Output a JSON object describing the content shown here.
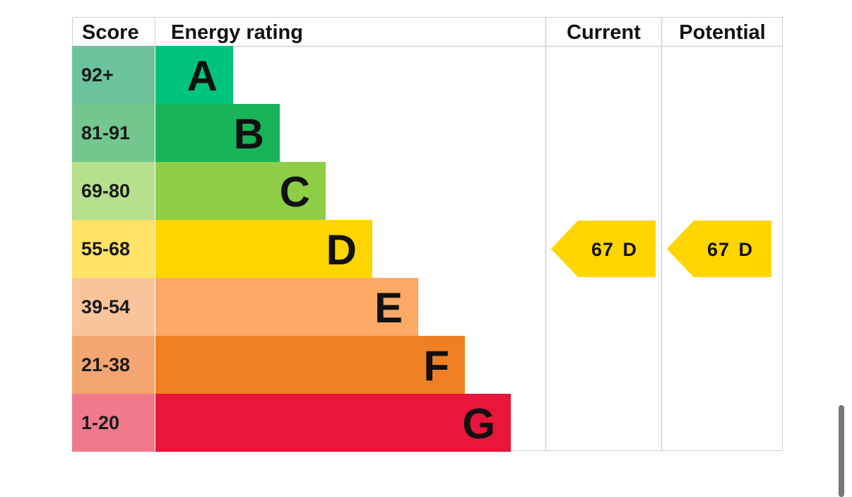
{
  "chart_data": {
    "type": "table",
    "headers": {
      "score": "Score",
      "rating": "Energy rating",
      "current": "Current",
      "potential": "Potential"
    },
    "bands": [
      {
        "letter": "A",
        "range": "92+",
        "color": "#00c47c",
        "score_color": "#6cc29d"
      },
      {
        "letter": "B",
        "range": "81-91",
        "color": "#19b459",
        "score_color": "#74c68f"
      },
      {
        "letter": "C",
        "range": "69-80",
        "color": "#8dce46",
        "score_color": "#b6e08e"
      },
      {
        "letter": "D",
        "range": "55-68",
        "color": "#ffd500",
        "score_color": "#ffe266"
      },
      {
        "letter": "E",
        "range": "39-54",
        "color": "#fcaa65",
        "score_color": "#f9c49c"
      },
      {
        "letter": "F",
        "range": "21-38",
        "color": "#ef8023",
        "score_color": "#f3a671"
      },
      {
        "letter": "G",
        "range": "1-20",
        "color": "#e9153b",
        "score_color": "#ee7a8c"
      }
    ],
    "current": {
      "value": 67,
      "band": "D",
      "label": "67 D",
      "color": "#ffd500"
    },
    "potential": {
      "value": 67,
      "band": "D",
      "label": "67 D",
      "color": "#ffd500"
    }
  }
}
